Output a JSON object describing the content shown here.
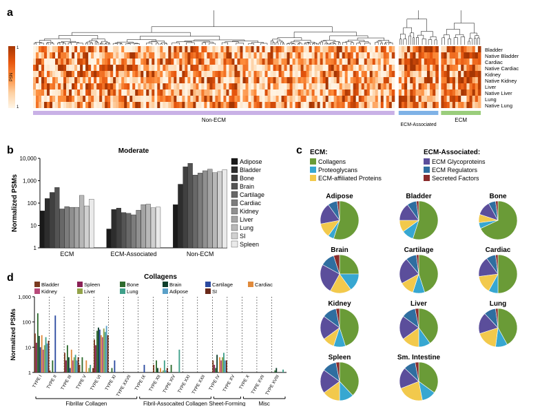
{
  "panelA": {
    "label": "a",
    "row_labels": [
      "Bladder",
      "Native Bladder",
      "Cardiac",
      "Native Cardiac",
      "Kidney",
      "Native Kidney",
      "Liver",
      "Native Liver",
      "Lung",
      "Native Lung"
    ],
    "col_groups": [
      {
        "label": "Non-ECM",
        "width": 0.82,
        "bar_color": "#c9b1e6"
      },
      {
        "label": "ECM-Associated",
        "width": 0.09,
        "bar_color": "#7fb2e6"
      },
      {
        "label": "ECM",
        "width": 0.09,
        "bar_color": "#9acd7b"
      }
    ],
    "colorbar": {
      "label": "PSN",
      "gradient": [
        "#fff5e6",
        "#fdd0a2",
        "#fd8d3c",
        "#e6550d",
        "#a63603"
      ],
      "tick_low": "1",
      "tick_high": "1"
    },
    "dendro_height": 50,
    "heatmap_rows": 10,
    "heatmap_cols": 140,
    "bg": "#ffffff"
  },
  "panelB": {
    "label": "b",
    "title": "Moderate",
    "ylabel": "Normalized PSMs",
    "y_ticks": [
      "1",
      "10",
      "100",
      "1,000",
      "10,000"
    ],
    "log_min": 1,
    "log_max": 10000,
    "groups": [
      "ECM",
      "ECM-Associated",
      "Non-ECM"
    ],
    "tissues": [
      "Adipose",
      "Bladder",
      "Bone",
      "Brain",
      "Cartilage",
      "Cardiac",
      "Kidney",
      "Liver",
      "Lung",
      "SI",
      "Spleen"
    ],
    "greys": [
      "#1a1a1a",
      "#2d2d2d",
      "#404040",
      "#545454",
      "#686868",
      "#7c7c7c",
      "#909090",
      "#a4a4a4",
      "#b8b8b8",
      "#d0d0d0",
      "#eaeaea"
    ],
    "values": {
      "ECM": [
        45,
        160,
        300,
        500,
        55,
        70,
        65,
        65,
        220,
        75,
        150
      ],
      "ECM-Associated": [
        7,
        52,
        60,
        38,
        35,
        30,
        48,
        85,
        90,
        62,
        66
      ],
      "Non-ECM": [
        85,
        700,
        4200,
        6000,
        1800,
        2200,
        2800,
        3300,
        2300,
        2600,
        3100
      ]
    },
    "plot": {
      "bg": "#ffffff",
      "axis_color": "#000000",
      "tick_font": 9,
      "title_fontsize": 10,
      "label_fontsize": 10
    }
  },
  "panelC": {
    "label": "c",
    "header_ecm": "ECM:",
    "header_assoc": "ECM-Associated:",
    "categories": [
      {
        "name": "Collagens",
        "color": "#6a9b37"
      },
      {
        "name": "Proteoglycans",
        "color": "#37a7d1"
      },
      {
        "name": "ECM-affiliated Proteins",
        "color": "#f2c94c"
      },
      {
        "name": "ECM Glycoproteins",
        "color": "#5b4e9b"
      },
      {
        "name": "ECM Regulators",
        "color": "#2f6ea0"
      },
      {
        "name": "Secreted Factors",
        "color": "#8a2b2b"
      }
    ],
    "pies": [
      {
        "name": "Adipose",
        "slices": [
          55,
          5,
          12,
          18,
          8,
          2
        ]
      },
      {
        "name": "Bladder",
        "slices": [
          55,
          10,
          10,
          15,
          8,
          2
        ]
      },
      {
        "name": "Bone",
        "slices": [
          68,
          5,
          7,
          12,
          6,
          2
        ]
      },
      {
        "name": "Brain",
        "slices": [
          25,
          15,
          18,
          25,
          12,
          5
        ]
      },
      {
        "name": "Cartilage",
        "slices": [
          45,
          10,
          12,
          22,
          9,
          2
        ]
      },
      {
        "name": "Cardiac",
        "slices": [
          50,
          8,
          15,
          17,
          8,
          2
        ]
      },
      {
        "name": "Kidney",
        "slices": [
          45,
          10,
          10,
          20,
          12,
          3
        ]
      },
      {
        "name": "Liver",
        "slices": [
          40,
          10,
          15,
          20,
          12,
          3
        ]
      },
      {
        "name": "Lung",
        "slices": [
          42,
          10,
          18,
          18,
          10,
          2
        ]
      },
      {
        "name": "Spleen",
        "slices": [
          38,
          12,
          15,
          20,
          12,
          3
        ]
      },
      {
        "name": "Sm. Intestine",
        "slices": [
          35,
          12,
          22,
          18,
          10,
          3
        ]
      }
    ],
    "pie_radius": 28,
    "title_fontsize": 10,
    "legend_fontsize": 9
  },
  "panelD": {
    "label": "d",
    "title": "Collagens",
    "ylabel": "Normalized PSMs",
    "y_ticks": [
      "1",
      "10",
      "100",
      "1,000"
    ],
    "log_min": 1,
    "log_max": 1000,
    "tissues": [
      "Bladder",
      "Spleen",
      "Bone",
      "Brain",
      "Cartilage",
      "Cardiac",
      "Kidney",
      "Liver",
      "Lung",
      "Adipose",
      "SI"
    ],
    "tissue_colors": [
      "#7a3a1f",
      "#8a2156",
      "#2d6a2d",
      "#0e3e2a",
      "#2b4aa0",
      "#e08a3c",
      "#b84a7a",
      "#93a34a",
      "#3fa08a",
      "#5aa0c8",
      "#6a2a1a"
    ],
    "ctypes": [
      "TYPE I",
      "TYPE II",
      "TYPE III",
      "TYPE V",
      "TYPE VI",
      "TYPE XI",
      "TYPE XXVII",
      "TYPE IX",
      "TYPE XII",
      "TYPE XIV",
      "TYPE XXI",
      "TYPE XXII",
      "TYPE IV",
      "TYPE XV",
      "TYPE X",
      "TYPE XVII",
      "TYPE XVIII"
    ],
    "groups": [
      {
        "label": "Fibrillar Collagen",
        "span": [
          0,
          7
        ]
      },
      {
        "label": "Fibril-Assocaited Collagen",
        "span": [
          7,
          12
        ]
      },
      {
        "label": "Sheet-Forming",
        "span": [
          12,
          14
        ]
      },
      {
        "label": "Misc",
        "span": [
          14,
          17
        ]
      }
    ],
    "values": {
      "TYPE I": [
        35,
        15,
        220,
        28,
        10,
        30,
        8,
        12,
        25,
        14,
        18
      ],
      "TYPE II": [
        1.2,
        0.8,
        3,
        0.6,
        180,
        0.5,
        0.4,
        0.3,
        0.6,
        0.4,
        0.7
      ],
      "TYPE III": [
        6,
        3,
        12,
        4,
        1.5,
        8,
        3,
        4,
        5,
        3,
        4
      ],
      "TYPE V": [
        2,
        1,
        4,
        1,
        1,
        3,
        1,
        1.5,
        2,
        1,
        1.5
      ],
      "TYPE VI": [
        20,
        12,
        45,
        60,
        50,
        30,
        25,
        55,
        40,
        70,
        30
      ],
      "TYPE XI": [
        0.6,
        0.4,
        1.5,
        0.3,
        3,
        0.3,
        0.3,
        0.3,
        0.4,
        0.3,
        0.3
      ],
      "TYPE XXVII": [
        0,
        0,
        0.4,
        0,
        0.5,
        0,
        0,
        0,
        0,
        0,
        0
      ],
      "TYPE IX": [
        0,
        0,
        0,
        0,
        2,
        0,
        0,
        0,
        0,
        0,
        0
      ],
      "TYPE XII": [
        2,
        1,
        3,
        1.5,
        1,
        1.5,
        1,
        1.2,
        3,
        1.2,
        1.5
      ],
      "TYPE XIV": [
        1,
        0.6,
        2,
        1,
        0.6,
        1,
        0.7,
        0.8,
        8,
        0.6,
        1
      ],
      "TYPE XXI": [
        0,
        0,
        0,
        0,
        0,
        0.4,
        0,
        0,
        0,
        0,
        0
      ],
      "TYPE XXII": [
        0,
        0,
        0.6,
        0,
        0.4,
        0,
        0,
        0,
        0,
        0,
        0
      ],
      "TYPE IV": [
        3,
        2,
        1.5,
        5,
        0.8,
        4,
        3,
        4,
        6,
        3,
        3
      ],
      "TYPE XV": [
        0.6,
        0.4,
        0.5,
        0.5,
        0.3,
        0.6,
        0.4,
        0.5,
        0.6,
        0.4,
        0.5
      ],
      "TYPE X": [
        0,
        0,
        0.5,
        0,
        0.4,
        0,
        0,
        0,
        0,
        0,
        0
      ],
      "TYPE XVII": [
        0,
        0,
        0,
        0,
        0,
        0,
        0.4,
        0,
        0,
        0,
        0
      ],
      "TYPE XVIII": [
        1,
        0.6,
        1.2,
        1.5,
        0.5,
        1,
        0.8,
        1,
        1.3,
        0.7,
        0.9
      ]
    },
    "plot": {
      "axis_color": "#000000",
      "divider_dash": "2,2"
    }
  }
}
